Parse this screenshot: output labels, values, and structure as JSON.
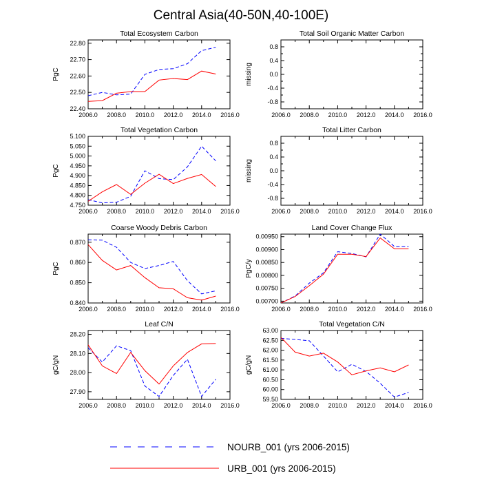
{
  "figure": {
    "title": "Central Asia(40-50N,40-100E)"
  },
  "colors": {
    "nourb": "#0000ff",
    "urb": "#ff0000",
    "axis": "#000000"
  },
  "legend": {
    "items": [
      {
        "label": "NOURB_001 (yrs 2006-2015)",
        "color": "#0000ff",
        "dash": "dashed"
      },
      {
        "label": "URB_001 (yrs 2006-2015)",
        "color": "#ff0000",
        "dash": "solid"
      }
    ]
  },
  "chart_data": [
    {
      "type": "line",
      "title": "Total Ecosystem Carbon",
      "ylabel": "PgC",
      "xlim": [
        2006,
        2016
      ],
      "ylim": [
        22.4,
        22.82
      ],
      "xticks": [
        2006,
        2008,
        2010,
        2012,
        2014,
        2016
      ],
      "xtick_labels": [
        "2006.0",
        "2008.0",
        "2010.0",
        "2012.0",
        "2014.0",
        "2016.0"
      ],
      "yticks": [
        22.4,
        22.5,
        22.6,
        22.7,
        22.8
      ],
      "ytick_labels": [
        "22.40",
        "22.50",
        "22.60",
        "22.70",
        "22.80"
      ],
      "x": [
        2006,
        2007,
        2008,
        2009,
        2010,
        2011,
        2012,
        2013,
        2014,
        2015
      ],
      "series": [
        {
          "name": "NOURB_001",
          "values": [
            22.48,
            22.5,
            22.485,
            22.49,
            22.61,
            22.64,
            22.645,
            22.675,
            22.755,
            22.775
          ]
        },
        {
          "name": "URB_001",
          "values": [
            22.445,
            22.45,
            22.495,
            22.505,
            22.505,
            22.575,
            22.585,
            22.578,
            22.63,
            22.612
          ]
        }
      ]
    },
    {
      "type": "line",
      "title": "Total Soil Organic Matter Carbon",
      "ylabel": "missing",
      "xlim": [
        2006,
        2016
      ],
      "ylim": [
        -1,
        1
      ],
      "xticks": [
        2006,
        2008,
        2010,
        2012,
        2014,
        2016
      ],
      "xtick_labels": [
        "2006.0",
        "2008.0",
        "2010.0",
        "2012.0",
        "2014.0",
        "2016.0"
      ],
      "yticks": [
        -0.8,
        -0.4,
        0,
        0.4,
        0.8
      ],
      "ytick_labels": [
        "-0.8",
        "-0.4",
        "0.0",
        "0.4",
        "0.8"
      ],
      "minor_yticks": [
        -0.6,
        -0.2,
        0.2,
        0.6
      ],
      "x": [],
      "series": []
    },
    {
      "type": "line",
      "title": "Total Vegetation Carbon",
      "ylabel": "PgC",
      "xlim": [
        2006,
        2016
      ],
      "ylim": [
        4.75,
        5.1
      ],
      "xticks": [
        2006,
        2008,
        2010,
        2012,
        2014,
        2016
      ],
      "xtick_labels": [
        "2006.0",
        "2008.0",
        "2010.0",
        "2012.0",
        "2014.0",
        "2016.0"
      ],
      "yticks": [
        4.75,
        4.8,
        4.85,
        4.9,
        4.95,
        5.0,
        5.05,
        5.1
      ],
      "ytick_labels": [
        "4.750",
        "4.800",
        "4.850",
        "4.900",
        "4.950",
        "5.000",
        "5.050",
        "5.100"
      ],
      "x": [
        2006,
        2007,
        2008,
        2009,
        2010,
        2011,
        2012,
        2013,
        2014,
        2015
      ],
      "series": [
        {
          "name": "NOURB_001",
          "values": [
            4.778,
            4.762,
            4.765,
            4.795,
            4.925,
            4.885,
            4.88,
            4.945,
            5.05,
            4.975
          ]
        },
        {
          "name": "URB_001",
          "values": [
            4.77,
            4.818,
            4.855,
            4.805,
            4.862,
            4.907,
            4.86,
            4.886,
            4.906,
            4.845
          ]
        }
      ]
    },
    {
      "type": "line",
      "title": "Total Litter Carbon",
      "ylabel": "missing",
      "xlim": [
        2006,
        2016
      ],
      "ylim": [
        -1,
        1
      ],
      "xticks": [
        2006,
        2008,
        2010,
        2012,
        2014,
        2016
      ],
      "xtick_labels": [
        "2006.0",
        "2008.0",
        "2010.0",
        "2012.0",
        "2014.0",
        "2016.0"
      ],
      "yticks": [
        -0.8,
        -0.4,
        0,
        0.4,
        0.8
      ],
      "ytick_labels": [
        "-0.8",
        "-0.4",
        "0.0",
        "0.4",
        "0.8"
      ],
      "minor_yticks": [
        -0.6,
        -0.2,
        0.2,
        0.6
      ],
      "x": [],
      "series": []
    },
    {
      "type": "line",
      "title": "Coarse Woody Debris Carbon",
      "ylabel": "PgC",
      "xlim": [
        2006,
        2016
      ],
      "ylim": [
        0.84,
        0.874
      ],
      "xticks": [
        2006,
        2008,
        2010,
        2012,
        2014,
        2016
      ],
      "xtick_labels": [
        "2006.0",
        "2008.0",
        "2010.0",
        "2012.0",
        "2014.0",
        "2016.0"
      ],
      "yticks": [
        0.84,
        0.85,
        0.86,
        0.87
      ],
      "ytick_labels": [
        "0.840",
        "0.850",
        "0.860",
        "0.870"
      ],
      "x": [
        2006,
        2007,
        2008,
        2009,
        2010,
        2011,
        2012,
        2013,
        2014,
        2015
      ],
      "series": [
        {
          "name": "NOURB_001",
          "values": [
            0.8712,
            0.871,
            0.8675,
            0.86,
            0.857,
            0.8585,
            0.8605,
            0.851,
            0.8445,
            0.846
          ]
        },
        {
          "name": "URB_001",
          "values": [
            0.8688,
            0.861,
            0.8563,
            0.8585,
            0.8525,
            0.8475,
            0.847,
            0.8426,
            0.8414,
            0.8434
          ]
        }
      ]
    },
    {
      "type": "line",
      "title": "Land Cover Change Flux",
      "ylabel": "PgC/y",
      "xlim": [
        2006,
        2016
      ],
      "ylim": [
        0.00693,
        0.0096
      ],
      "xticks": [
        2006,
        2008,
        2010,
        2012,
        2014,
        2016
      ],
      "xtick_labels": [
        "2006.0",
        "2008.0",
        "2010.0",
        "2012.0",
        "2014.0",
        "2016.0"
      ],
      "yticks": [
        0.007,
        0.0075,
        0.008,
        0.0085,
        0.009,
        0.0095
      ],
      "ytick_labels": [
        "0.00700",
        "0.00750",
        "0.00800",
        "0.00850",
        "0.00900",
        "0.00950"
      ],
      "x": [
        2006,
        2007,
        2008,
        2009,
        2010,
        2011,
        2012,
        2013,
        2014,
        2015
      ],
      "series": [
        {
          "name": "NOURB_001",
          "values": [
            0.00693,
            0.0072,
            0.0077,
            0.0081,
            0.00892,
            0.00885,
            0.00872,
            0.0096,
            0.00912,
            0.00912
          ]
        },
        {
          "name": "URB_001",
          "values": [
            0.00693,
            0.00718,
            0.0076,
            0.00805,
            0.00882,
            0.00882,
            0.00873,
            0.00945,
            0.00903,
            0.00903
          ]
        }
      ]
    },
    {
      "type": "line",
      "title": "Leaf C/N",
      "ylabel": "gC/gN",
      "xlim": [
        2006,
        2016
      ],
      "ylim": [
        27.86,
        28.22
      ],
      "xticks": [
        2006,
        2008,
        2010,
        2012,
        2014,
        2016
      ],
      "xtick_labels": [
        "2006.0",
        "2008.0",
        "2010.0",
        "2012.0",
        "2014.0",
        "2016.0"
      ],
      "yticks": [
        27.9,
        28.0,
        28.1,
        28.2
      ],
      "ytick_labels": [
        "27.90",
        "28.00",
        "28.10",
        "28.20"
      ],
      "x": [
        2006,
        2007,
        2008,
        2009,
        2010,
        2011,
        2012,
        2013,
        2014,
        2015
      ],
      "series": [
        {
          "name": "NOURB_001",
          "values": [
            28.13,
            28.055,
            28.14,
            28.115,
            27.93,
            27.875,
            27.985,
            28.07,
            27.875,
            27.965
          ]
        },
        {
          "name": "URB_001",
          "values": [
            28.145,
            28.035,
            27.995,
            28.105,
            28.01,
            27.94,
            28.035,
            28.105,
            28.15,
            28.152
          ]
        }
      ]
    },
    {
      "type": "line",
      "title": "Total Vegetation C/N",
      "ylabel": "gC/gN",
      "xlim": [
        2006,
        2016
      ],
      "ylim": [
        59.5,
        63.0
      ],
      "xticks": [
        2006,
        2008,
        2010,
        2012,
        2014,
        2016
      ],
      "xtick_labels": [
        "2006.0",
        "2008.0",
        "2010.0",
        "2012.0",
        "2014.0",
        "2016.0"
      ],
      "yticks": [
        59.5,
        60.0,
        60.5,
        61.0,
        61.5,
        62.0,
        62.5,
        63.0
      ],
      "ytick_labels": [
        "59.50",
        "60.00",
        "60.50",
        "61.00",
        "61.50",
        "62.00",
        "62.50",
        "63.00"
      ],
      "x": [
        2006,
        2007,
        2008,
        2009,
        2010,
        2011,
        2012,
        2013,
        2014,
        2015
      ],
      "series": [
        {
          "name": "NOURB_001",
          "values": [
            62.6,
            62.55,
            62.48,
            61.7,
            60.9,
            61.28,
            60.92,
            60.32,
            59.62,
            59.85
          ]
        },
        {
          "name": "URB_001",
          "values": [
            62.65,
            61.9,
            61.7,
            61.85,
            61.4,
            60.75,
            60.95,
            61.1,
            60.9,
            61.25
          ]
        }
      ]
    }
  ]
}
